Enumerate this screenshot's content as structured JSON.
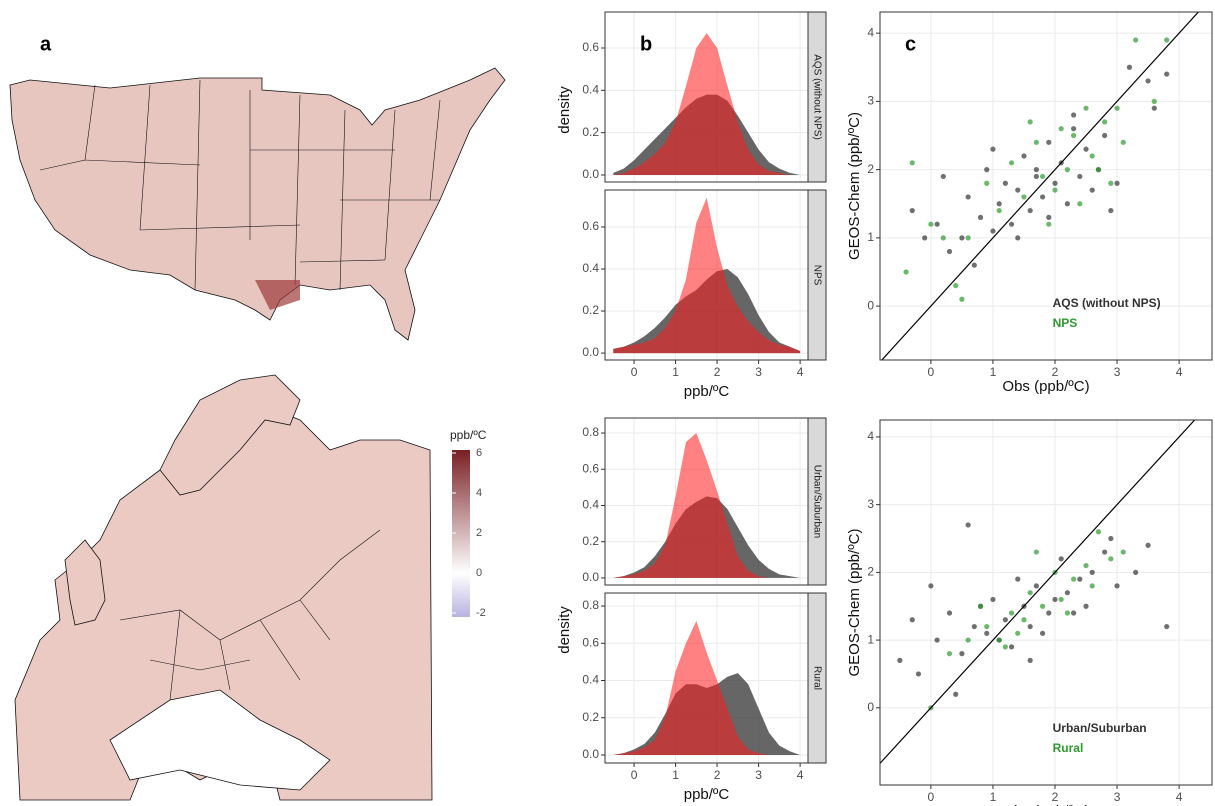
{
  "chart_data": [
    {
      "type": "map",
      "panel_label": "a"
    },
    {
      "type": "map",
      "colorbar": {
        "title": "ppb/ºC",
        "lim": [
          -2.2,
          6.15
        ],
        "ticks": [
          6,
          4,
          2,
          0,
          -2
        ],
        "mid": 0,
        "colors": [
          "#b8b2e0",
          "#ffffff",
          "#7a1f24"
        ]
      }
    },
    {
      "type": "density",
      "panel_label": "b",
      "facet": "AQS (without NPS)",
      "ylabel": "density",
      "x": [
        -0.5,
        -0.25,
        0,
        0.25,
        0.5,
        0.75,
        1,
        1.25,
        1.5,
        1.75,
        2,
        2.25,
        2.5,
        2.75,
        3,
        3.25,
        3.5,
        3.75,
        4
      ],
      "xlim": [
        -0.7,
        4.19
      ],
      "ylim": [
        -0.033,
        0.77
      ],
      "xticks": [
        0,
        1,
        2,
        3,
        4
      ],
      "yticks": [
        {
          "value": 0,
          "label": "0.0"
        },
        0.2,
        0.4,
        0.6
      ],
      "grid": true,
      "series": [
        {
          "color": "#333333",
          "values": [
            0.01,
            0.03,
            0.07,
            0.12,
            0.17,
            0.22,
            0.27,
            0.32,
            0.36,
            0.38,
            0.38,
            0.35,
            0.28,
            0.2,
            0.12,
            0.06,
            0.03,
            0.01,
            0
          ]
        },
        {
          "color": "#ff1a1a",
          "values": [
            0,
            0.01,
            0.03,
            0.06,
            0.1,
            0.15,
            0.25,
            0.42,
            0.6,
            0.67,
            0.6,
            0.42,
            0.25,
            0.12,
            0.05,
            0.02,
            0.01,
            0,
            0
          ]
        }
      ]
    },
    {
      "type": "density",
      "facet": "NPS",
      "xlabel": "ppb/ºC",
      "x": [
        -0.5,
        -0.25,
        0,
        0.25,
        0.5,
        0.75,
        1,
        1.25,
        1.5,
        1.75,
        2,
        2.25,
        2.5,
        2.75,
        3,
        3.25,
        3.5,
        3.75,
        4
      ],
      "xlim": [
        -0.7,
        4.19
      ],
      "ylim": [
        -0.033,
        0.776
      ],
      "xticks": [
        0,
        1,
        2,
        3,
        4
      ],
      "yticks": [
        {
          "value": 0,
          "label": "0.0"
        },
        0.2,
        0.4,
        0.6
      ],
      "grid": true,
      "series": [
        {
          "color": "#333333",
          "values": [
            0.02,
            0.03,
            0.05,
            0.08,
            0.12,
            0.17,
            0.23,
            0.27,
            0.3,
            0.35,
            0.39,
            0.4,
            0.36,
            0.28,
            0.18,
            0.1,
            0.05,
            0.03,
            0.01
          ]
        },
        {
          "color": "#ff1a1a",
          "values": [
            0.02,
            0.03,
            0.04,
            0.05,
            0.07,
            0.12,
            0.2,
            0.35,
            0.62,
            0.74,
            0.5,
            0.32,
            0.22,
            0.15,
            0.1,
            0.06,
            0.04,
            0.03,
            0.01
          ]
        }
      ]
    },
    {
      "type": "density",
      "facet": "Urban/Suburban",
      "x": [
        -0.5,
        -0.25,
        0,
        0.25,
        0.5,
        0.75,
        1,
        1.25,
        1.5,
        1.75,
        2,
        2.25,
        2.5,
        2.75,
        3,
        3.25,
        3.5,
        3.75,
        4
      ],
      "xlim": [
        -0.7,
        4.19
      ],
      "ylim": [
        -0.039,
        0.883
      ],
      "xticks": [
        0,
        1,
        2,
        3,
        4
      ],
      "yticks": [
        {
          "value": 0,
          "label": "0.0"
        },
        0.2,
        0.4,
        0.6,
        0.8
      ],
      "grid": true,
      "series": [
        {
          "color": "#333333",
          "values": [
            0,
            0.01,
            0.03,
            0.06,
            0.12,
            0.2,
            0.3,
            0.38,
            0.42,
            0.45,
            0.44,
            0.38,
            0.28,
            0.18,
            0.1,
            0.05,
            0.02,
            0.01,
            0
          ]
        },
        {
          "color": "#ff1a1a",
          "values": [
            0,
            0.01,
            0.02,
            0.04,
            0.08,
            0.18,
            0.45,
            0.75,
            0.8,
            0.65,
            0.48,
            0.3,
            0.12,
            0.04,
            0.01,
            0,
            0,
            0,
            0
          ]
        }
      ]
    },
    {
      "type": "density",
      "facet": "Rural",
      "ylabel": "density",
      "xlabel": "ppb/ºC",
      "x": [
        -0.5,
        -0.25,
        0,
        0.25,
        0.5,
        0.75,
        1,
        1.25,
        1.5,
        1.75,
        2,
        2.25,
        2.5,
        2.75,
        3,
        3.25,
        3.5,
        3.75,
        4
      ],
      "xlim": [
        -0.7,
        4.19
      ],
      "ylim": [
        -0.043,
        0.87
      ],
      "xticks": [
        0,
        1,
        2,
        3,
        4
      ],
      "yticks": [
        {
          "value": 0,
          "label": "0.0"
        },
        0.2,
        0.4,
        0.6,
        0.8
      ],
      "grid": true,
      "series": [
        {
          "color": "#333333",
          "values": [
            0,
            0.01,
            0.03,
            0.06,
            0.12,
            0.22,
            0.33,
            0.38,
            0.38,
            0.36,
            0.38,
            0.42,
            0.44,
            0.38,
            0.25,
            0.12,
            0.05,
            0.02,
            0
          ]
        },
        {
          "color": "#ff1a1a",
          "values": [
            0,
            0.01,
            0.02,
            0.04,
            0.08,
            0.2,
            0.45,
            0.6,
            0.72,
            0.55,
            0.4,
            0.25,
            0.1,
            0.03,
            0.01,
            0,
            0,
            0,
            0
          ]
        }
      ]
    },
    {
      "type": "scatter",
      "panel_label": "c",
      "xlabel": "Obs (ppb/ºC)",
      "ylabel": "GEOS-Chem (ppb/ºC)",
      "xlim": [
        -0.82,
        4.53
      ],
      "ylim": [
        -0.79,
        4.31
      ],
      "xticks": [
        0,
        1,
        2,
        3,
        4
      ],
      "yticks": [
        0,
        1,
        2,
        3,
        4
      ],
      "grid": true,
      "identity_line": true,
      "legend": "bottom-right",
      "series": [
        {
          "name": "AQS (without NPS)",
          "color": "#333333",
          "x": [
            -0.3,
            0.1,
            0.3,
            0.5,
            0.6,
            0.8,
            0.9,
            1.0,
            1.1,
            1.2,
            1.3,
            1.4,
            1.5,
            1.6,
            1.7,
            1.8,
            1.9,
            2.0,
            2.1,
            2.2,
            2.3,
            2.4,
            2.5,
            2.6,
            2.7,
            2.8,
            3.0,
            3.2,
            3.5,
            3.8,
            0.2,
            0.7,
            1.0,
            1.4,
            1.9,
            2.3,
            2.9,
            3.6,
            -0.1,
            1.7
          ],
          "values": [
            1.4,
            1.2,
            0.8,
            1.0,
            1.6,
            1.3,
            2.0,
            1.1,
            1.5,
            1.8,
            1.2,
            1.7,
            2.2,
            1.4,
            1.9,
            1.6,
            2.4,
            1.8,
            2.1,
            1.5,
            2.6,
            1.9,
            2.3,
            1.7,
            2.0,
            2.5,
            1.8,
            3.5,
            3.3,
            3.4,
            1.9,
            0.6,
            2.3,
            1.0,
            1.3,
            2.8,
            1.4,
            2.9,
            1.0,
            2.0
          ]
        },
        {
          "name": "NPS",
          "color": "#2e9a2e",
          "x": [
            -0.4,
            0.0,
            0.4,
            0.6,
            0.9,
            1.1,
            1.3,
            1.5,
            1.7,
            1.8,
            2.0,
            2.1,
            2.2,
            2.4,
            2.5,
            2.6,
            2.8,
            2.9,
            3.1,
            3.3,
            3.6,
            3.8,
            1.9,
            2.3,
            0.5,
            1.6,
            2.7,
            3.0,
            -0.3,
            0.2
          ],
          "values": [
            0.5,
            1.2,
            0.3,
            1.0,
            1.8,
            1.4,
            2.1,
            1.6,
            2.4,
            1.9,
            1.7,
            2.6,
            2.0,
            1.5,
            2.9,
            2.2,
            2.7,
            1.8,
            2.4,
            3.9,
            3.0,
            3.9,
            1.2,
            2.5,
            0.1,
            2.7,
            2.0,
            2.9,
            2.1,
            1.0
          ]
        }
      ]
    },
    {
      "type": "scatter",
      "xlabel": "Obs (ppb/ºC)",
      "ylabel": "GEOS-Chem (ppb/ºC)",
      "xlim": [
        -0.82,
        4.53
      ],
      "ylim": [
        -1.14,
        4.25
      ],
      "xticks": [
        0,
        1,
        2,
        3,
        4
      ],
      "yticks": [
        0,
        1,
        2,
        3,
        4
      ],
      "grid": true,
      "identity_line": true,
      "legend": "bottom-right",
      "series": [
        {
          "name": "Urban/Suburban",
          "color": "#333333",
          "x": [
            -0.5,
            -0.2,
            0.1,
            0.3,
            0.5,
            0.7,
            0.9,
            1.0,
            1.2,
            1.3,
            1.5,
            1.6,
            1.7,
            1.9,
            2.0,
            2.2,
            2.4,
            2.6,
            2.8,
            3.0,
            3.3,
            3.8,
            0.6,
            1.1,
            1.4,
            1.8,
            2.1,
            2.5,
            0.0,
            0.4,
            0.8,
            3.5,
            1.6,
            2.3,
            -0.3,
            2.9
          ],
          "values": [
            0.7,
            0.5,
            1.0,
            1.4,
            0.8,
            1.2,
            1.1,
            1.6,
            1.3,
            0.9,
            1.5,
            1.2,
            1.8,
            1.4,
            1.6,
            1.7,
            1.9,
            2.0,
            2.3,
            1.8,
            2.0,
            1.2,
            2.7,
            1.0,
            1.9,
            1.1,
            2.2,
            1.5,
            1.8,
            0.2,
            1.5,
            2.4,
            0.7,
            1.4,
            1.3,
            2.5
          ]
        },
        {
          "name": "Rural",
          "color": "#2e9a2e",
          "x": [
            0.0,
            0.3,
            0.6,
            0.9,
            1.1,
            1.3,
            1.5,
            1.6,
            1.8,
            2.0,
            2.1,
            2.3,
            2.5,
            2.7,
            2.9,
            1.2,
            1.7,
            2.2,
            0.8,
            1.4,
            2.6,
            3.1
          ],
          "values": [
            0.0,
            0.8,
            1.0,
            1.2,
            1.0,
            1.4,
            1.3,
            1.7,
            1.5,
            2.0,
            1.6,
            1.9,
            2.1,
            2.6,
            2.2,
            0.9,
            2.3,
            1.4,
            1.5,
            1.1,
            1.8,
            2.3
          ]
        }
      ]
    }
  ]
}
